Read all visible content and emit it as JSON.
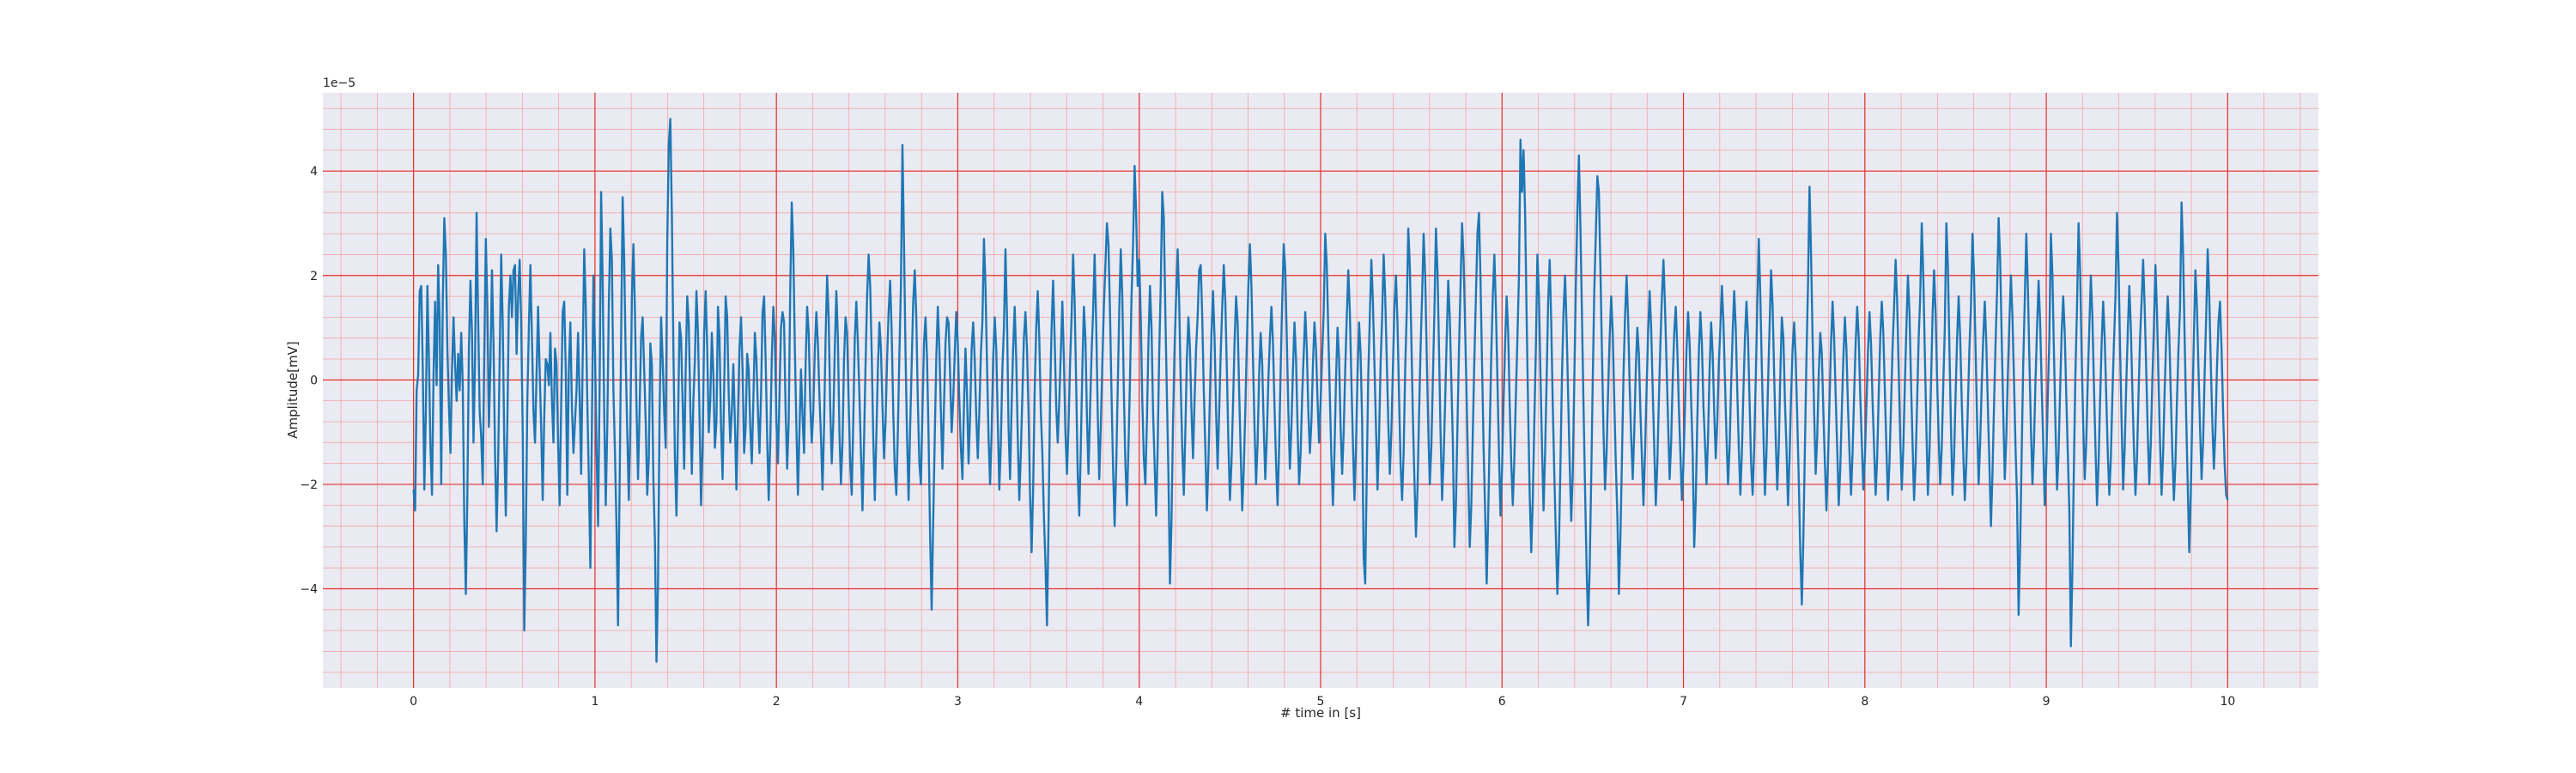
{
  "chart_data": {
    "type": "line",
    "title": "",
    "xlabel": "# time in [s]",
    "ylabel": "Amplitude[mV]",
    "y_offset_label": "1e−5",
    "xlim": [
      -0.5,
      10.5
    ],
    "ylim": [
      -5.9,
      5.5
    ],
    "xticks": [
      0,
      1,
      2,
      3,
      4,
      5,
      6,
      7,
      8,
      9,
      10
    ],
    "xtick_labels": [
      "0",
      "1",
      "2",
      "3",
      "4",
      "5",
      "6",
      "7",
      "8",
      "9",
      "10"
    ],
    "yticks": [
      -4,
      -2,
      0,
      2,
      4
    ],
    "ytick_labels": [
      "−4",
      "−2",
      "0",
      "2",
      "4"
    ],
    "grid": "major and minor, red",
    "colors": {
      "background": "#eaeaf2",
      "major_grid": "#e8302a",
      "minor_grid": "#f2a6a6",
      "line": "#1f77b4",
      "text": "#262626"
    },
    "series": [
      {
        "sample_interval_s": 0.01,
        "x_start": 0,
        "values": [
          -2.1,
          -2.5,
          -0.2,
          0.1,
          1.7,
          1.8,
          0.2,
          -2.1,
          -0.6,
          1.8,
          0.4,
          -1.3,
          -2.2,
          0.1,
          1.5,
          -0.1,
          2.2,
          1.1,
          -2.0,
          1.5,
          3.1,
          2.4,
          0.6,
          -0.5,
          -1.4,
          0.2,
          1.2,
          0.3,
          -0.4,
          0.5,
          -0.2,
          0.9,
          -0.1,
          -2.7,
          -4.1,
          -2.2,
          0.6,
          1.9,
          0.9,
          -1.2,
          0.4,
          3.2,
          1.2,
          -0.6,
          -1.1,
          -2.0,
          0.5,
          2.7,
          1.4,
          -0.9,
          0.3,
          2.1,
          0.7,
          -1.4,
          -2.9,
          -1.6,
          0.4,
          2.4,
          1.1,
          -1.2,
          -2.6,
          -0.8,
          1.4,
          2.0,
          1.2,
          2.1,
          2.2,
          0.5,
          1.6,
          2.3,
          1.1,
          -1.0,
          -4.8,
          -3.1,
          -0.4,
          1.0,
          2.2,
          0.8,
          -0.6,
          -1.2,
          0.1,
          1.4,
          0.2,
          -0.9,
          -2.3,
          -0.7,
          0.4,
          0.3,
          -0.1,
          0.9,
          -0.4,
          -1.2,
          0.6,
          0.3,
          -1.2,
          -2.4,
          -0.5,
          1.3,
          1.5,
          0.2,
          -2.2,
          0.2,
          1.1,
          -0.5,
          -1.4,
          -0.8,
          -0.2,
          0.9,
          -0.3,
          -1.8,
          0.4,
          2.5,
          1.4,
          -0.4,
          -1.9,
          -3.6,
          -0.9,
          2.0,
          0.6,
          -1.3,
          -2.8,
          -0.2,
          3.6,
          1.9,
          -0.6,
          -2.4,
          -0.9,
          1.4,
          2.9,
          2.3,
          -0.2,
          -1.4,
          -2.8,
          -4.7,
          -2.1,
          0.8,
          3.5,
          2.3,
          0.4,
          -1.0,
          -2.3,
          -0.9,
          1.6,
          2.6,
          1.3,
          -0.5,
          -1.9,
          -0.6,
          0.8,
          1.2,
          0.2,
          -0.8,
          -2.2,
          -1.5,
          0.7,
          0.3,
          -1.9,
          -3.1,
          -5.4,
          -3.9,
          -0.7,
          1.2,
          0.4,
          -0.6,
          -1.3,
          2.6,
          4.5,
          5.0,
          3.2,
          0.6,
          -1.5,
          -2.6,
          -0.9,
          1.1,
          0.8,
          -0.4,
          -1.7,
          0.2,
          1.6,
          1.1,
          -0.5,
          -1.8,
          -0.4,
          0.4,
          1.7,
          0.9,
          -0.7,
          -2.4,
          -1.3,
          0.9,
          1.7,
          0.6,
          -1.0,
          -0.4,
          0.9,
          0.1,
          -1.3,
          -0.8,
          1.4,
          0.8,
          -0.9,
          -1.9,
          -0.2,
          1.6,
          1.2,
          -0.3,
          -1.2,
          -0.6,
          0.3,
          -0.8,
          -2.1,
          -0.7,
          0.6,
          1.2,
          0.2,
          -1.4,
          -0.9,
          0.5,
          0.2,
          -0.9,
          -1.6,
          -0.4,
          0.9,
          0.4,
          -0.6,
          -1.4,
          -0.3,
          1.3,
          1.6,
          0.4,
          -1.1,
          -2.3,
          -1.2,
          0.4,
          1.4,
          0.8,
          -0.8,
          -1.6,
          -0.3,
          1.0,
          1.3,
          1.1,
          -0.6,
          -1.7,
          -0.8,
          1.7,
          3.4,
          2.5,
          0.6,
          -0.9,
          -2.2,
          -1.0,
          0.2,
          -0.7,
          -1.4,
          0.3,
          1.4,
          0.9,
          -0.4,
          -1.2,
          -0.6,
          0.6,
          1.3,
          0.7,
          -0.3,
          -1.1,
          -2.1,
          -0.9,
          0.8,
          2.0,
          1.2,
          -0.5,
          -1.6,
          -0.8,
          0.6,
          1.7,
          0.8,
          -1.0,
          -2.0,
          -1.2,
          0.4,
          1.2,
          0.9,
          -0.4,
          -1.6,
          -2.2,
          -0.8,
          0.8,
          1.5,
          0.7,
          -0.3,
          -1.4,
          -2.5,
          -1.2,
          0.3,
          1.6,
          2.4,
          1.8,
          0.5,
          -1.1,
          -2.3,
          -1.1,
          0.2,
          1.1,
          0.6,
          -0.5,
          -1.5,
          -0.8,
          0.4,
          1.3,
          1.9,
          0.9,
          -0.6,
          -1.7,
          -2.2,
          -1.0,
          0.5,
          1.8,
          4.5,
          2.6,
          0.5,
          -1.1,
          -2.3,
          -0.9,
          0.3,
          1.5,
          2.1,
          1.2,
          -0.4,
          -1.6,
          -2.0,
          -0.6,
          0.7,
          1.2,
          0.4,
          -1.1,
          -3.0,
          -4.4,
          -2.7,
          -1.1,
          0.4,
          1.4,
          0.6,
          -0.6,
          -1.7,
          -0.5,
          0.7,
          1.2,
          1.1,
          0.1,
          -1.0,
          -0.4,
          0.5,
          1.3,
          0.7,
          -0.4,
          -1.3,
          -1.9,
          -0.5,
          0.6,
          -0.3,
          -1.6,
          -0.7,
          0.6,
          1.1,
          0.4,
          -0.7,
          -1.5,
          -0.6,
          0.5,
          1.1,
          2.7,
          1.8,
          0.3,
          -1.1,
          -2.0,
          -1.0,
          0.4,
          1.2,
          0.6,
          -0.8,
          -2.1,
          -1.2,
          0.2,
          1.0,
          2.5,
          1.2,
          -0.9,
          -1.9,
          -0.5,
          0.6,
          1.4,
          0.4,
          -1.1,
          -2.3,
          -1.4,
          -0.3,
          0.8,
          1.3,
          0.6,
          -0.6,
          -2.2,
          -3.3,
          -2.1,
          -0.2,
          1.0,
          1.7,
          0.8,
          -0.6,
          -1.4,
          -2.6,
          -3.5,
          -4.7,
          -2.8,
          -0.4,
          1.0,
          1.9,
          0.8,
          -0.5,
          -1.2,
          -0.4,
          0.5,
          1.5,
          0.4,
          -1.0,
          -1.8,
          -0.9,
          0.3,
          1.2,
          2.4,
          1.5,
          -0.1,
          -1.8,
          -2.6,
          -1.3,
          0.2,
          1.4,
          0.8,
          -0.7,
          -1.8,
          -0.6,
          0.5,
          1.3,
          2.4,
          1.1,
          -0.6,
          -1.9,
          -0.9,
          0.3,
          1.4,
          2.2,
          3.0,
          2.6,
          1.3,
          -0.3,
          -1.7,
          -2.8,
          -1.7,
          -0.2,
          1.3,
          2.5,
          1.6,
          -0.2,
          -1.6,
          -2.4,
          -1.3,
          0.0,
          1.6,
          2.6,
          4.1,
          3.2,
          1.8,
          2.3,
          1.2,
          -0.4,
          -1.5,
          -2.0,
          -0.8,
          0.7,
          1.8,
          1.0,
          -0.6,
          -1.6,
          -2.6,
          -1.3,
          0.5,
          1.8,
          3.6,
          3.1,
          1.3,
          -0.3,
          -1.8,
          -3.9,
          -2.7,
          -0.8,
          0.6,
          1.6,
          2.5,
          1.5,
          -0.1,
          -1.3,
          -2.2,
          -1.0,
          0.4,
          1.2,
          0.6,
          -0.6,
          -1.5,
          -0.4,
          0.6,
          1.2,
          2.1,
          2.2,
          1.2,
          -0.2,
          -1.3,
          -2.5,
          -1.6,
          -0.3,
          0.9,
          1.7,
          0.8,
          -0.6,
          -1.7,
          -0.6,
          0.5,
          1.4,
          2.2,
          1.5,
          0.2,
          -1.2,
          -2.3,
          -1.6,
          -0.5,
          0.7,
          1.6,
          1.1,
          -0.2,
          -1.4,
          -2.5,
          -1.7,
          -0.6,
          0.7,
          1.8,
          2.6,
          1.8,
          0.4,
          -0.9,
          -2.0,
          -1.2,
          0.1,
          0.9,
          0.3,
          -0.9,
          -1.9,
          -1.1,
          0.0,
          0.8,
          1.4,
          0.7,
          -0.5,
          -1.6,
          -2.4,
          -1.3,
          0.2,
          1.5,
          2.6,
          2.1,
          0.8,
          -0.6,
          -1.7,
          -0.9,
          0.2,
          1.1,
          0.4,
          -0.9,
          -2.0,
          -1.4,
          -0.3,
          0.5,
          1.3,
          0.6,
          -0.6,
          -1.4,
          -0.8,
          0.3,
          1.1,
          0.6,
          -0.4,
          -1.2,
          -0.4,
          0.5,
          1.3,
          2.8,
          2.2,
          0.9,
          -0.3,
          -1.5,
          -2.4,
          -1.4,
          0.0,
          1.0,
          0.4,
          -0.9,
          -1.8,
          -1.0,
          0.2,
          1.2,
          2.1,
          1.3,
          0.0,
          -1.2,
          -2.3,
          -1.3,
          0.1,
          1.1,
          0.5,
          -0.8,
          -3.4,
          -3.9,
          -1.8,
          0.1,
          1.2,
          2.3,
          1.5,
          0.3,
          -0.9,
          -2.1,
          -1.1,
          0.3,
          1.2,
          2.4,
          1.6,
          0.4,
          -0.8,
          -1.8,
          -1.0,
          0.2,
          1.4,
          2.0,
          1.1,
          -0.3,
          -1.6,
          -2.3,
          -1.4,
          0.2,
          1.3,
          2.9,
          2.2,
          0.8,
          -0.7,
          -1.9,
          -3.0,
          -2.1,
          -0.7,
          0.6,
          1.6,
          2.8,
          2.0,
          0.5,
          -0.9,
          -2.0,
          -1.3,
          0.0,
          1.3,
          2.9,
          2.1,
          0.6,
          -1.0,
          -2.3,
          -1.5,
          -0.4,
          0.8,
          1.9,
          1.2,
          0.0,
          -1.2,
          -3.2,
          -2.4,
          -0.9,
          0.6,
          1.8,
          3.0,
          2.3,
          1.0,
          -0.4,
          -1.8,
          -3.2,
          -2.4,
          -1.0,
          0.4,
          1.6,
          2.8,
          3.2,
          1.9,
          0.3,
          -1.3,
          -2.5,
          -3.9,
          -2.6,
          -1.0,
          0.5,
          1.6,
          2.4,
          1.4,
          0.0,
          -1.4,
          -2.6,
          -1.7,
          -0.4,
          0.7,
          1.6,
          0.9,
          -0.5,
          -1.6,
          -2.4,
          -1.5,
          -0.3,
          0.8,
          2.0,
          4.6,
          3.6,
          4.4,
          3.2,
          1.2,
          -0.6,
          -2.2,
          -3.3,
          -2.3,
          -0.8,
          0.6,
          2.4,
          1.6,
          0.1,
          -1.3,
          -2.5,
          -1.4,
          0.0,
          1.5,
          2.3,
          1.1,
          -0.5,
          -1.8,
          -3.0,
          -4.1,
          -3.2,
          -1.6,
          0.1,
          1.3,
          2.0,
          1.0,
          -0.3,
          -1.6,
          -2.7,
          -1.8,
          0.0,
          1.8,
          3.2,
          4.3,
          2.9,
          1.2,
          -0.5,
          -2.1,
          -3.6,
          -4.7,
          -3.6,
          -1.9,
          0.0,
          1.7,
          2.8,
          3.9,
          3.6,
          2.1,
          0.5,
          -1.0,
          -2.1,
          -1.4,
          -0.2,
          0.8,
          1.6,
          0.9,
          -0.4,
          -1.6,
          -2.6,
          -4.1,
          -3.0,
          -1.5,
          0.1,
          1.2,
          2.0,
          1.2,
          -0.1,
          -1.1,
          -1.9,
          -1.0,
          0.2,
          1.0,
          0.5,
          -0.6,
          -1.5,
          -2.4,
          -1.4,
          -0.2,
          0.9,
          1.7,
          1.0,
          -0.2,
          -1.3,
          -2.4,
          -1.6,
          -0.4,
          0.7,
          1.6,
          2.3,
          1.4,
          0.3,
          -0.8,
          -1.9,
          -1.2,
          0.0,
          0.9,
          1.4,
          0.6,
          -0.5,
          -1.4,
          -2.3,
          -1.6,
          -0.5,
          0.6,
          1.3,
          0.7,
          -0.4,
          -1.4,
          -3.2,
          -2.3,
          -0.8,
          0.5,
          1.3,
          0.7,
          -0.5,
          -1.2,
          -2.0,
          -1.1,
          0.2,
          1.1,
          0.5,
          -0.6,
          -1.5,
          -0.8,
          0.3,
          1.0,
          1.8,
          1.1,
          0.0,
          -1.1,
          -2.0,
          -1.3,
          -0.1,
          0.9,
          1.7,
          1.0,
          -0.2,
          -1.3,
          -2.2,
          -1.4,
          -0.2,
          0.8,
          1.5,
          0.8,
          -0.4,
          -1.6,
          -2.2,
          -1.3,
          0.0,
          1.4,
          2.7,
          1.6,
          0.2,
          -1.0,
          -2.2,
          -1.4,
          -0.1,
          1.0,
          2.1,
          1.4,
          0.1,
          -1.1,
          -2.1,
          -1.3,
          0.1,
          1.2,
          0.8,
          -0.4,
          -1.3,
          -2.4,
          -1.5,
          -0.3,
          0.6,
          1.1,
          0.4,
          -0.7,
          -1.9,
          -3.3,
          -4.3,
          -3.0,
          -1.3,
          0.4,
          1.8,
          3.7,
          2.4,
          0.8,
          -0.6,
          -1.8,
          -1.1,
          0.1,
          0.9,
          0.5,
          -0.6,
          -1.6,
          -2.5,
          -1.6,
          -0.4,
          0.7,
          1.5,
          0.8,
          -0.3,
          -1.3,
          -2.4,
          -1.7,
          -0.6,
          0.4,
          1.2,
          0.6,
          -0.5,
          -1.4,
          -2.2,
          -1.4,
          -0.3,
          0.7,
          1.4,
          0.8,
          -0.3,
          -1.2,
          -2.1,
          -1.5,
          -0.5,
          0.5,
          1.3,
          0.7,
          -0.4,
          -1.3,
          -2.2,
          -1.5,
          -0.3,
          0.8,
          1.5,
          0.9,
          -0.2,
          -1.3,
          -2.3,
          -1.6,
          -0.5,
          0.6,
          1.4,
          2.3,
          1.5,
          0.2,
          -1.1,
          -2.1,
          -1.3,
          -0.1,
          1.0,
          2.0,
          1.3,
          0.0,
          -1.2,
          -2.3,
          -1.6,
          -0.4,
          0.8,
          1.6,
          3.0,
          2.0,
          0.5,
          -0.9,
          -2.2,
          -1.4,
          -0.1,
          1.2,
          2.1,
          1.3,
          0.0,
          -1.1,
          -2.0,
          -1.3,
          -0.1,
          1.0,
          3.0,
          2.2,
          0.6,
          -0.9,
          -2.2,
          -1.5,
          -0.3,
          0.8,
          1.6,
          0.8,
          -0.4,
          -1.4,
          -2.3,
          -1.6,
          -0.5,
          0.6,
          1.4,
          2.8,
          2.0,
          0.6,
          -0.8,
          -2.0,
          -1.2,
          -0.1,
          0.8,
          1.5,
          0.7,
          -0.5,
          -1.6,
          -2.8,
          -1.8,
          -0.5,
          0.7,
          1.7,
          3.1,
          2.3,
          0.8,
          -0.6,
          -1.9,
          -1.1,
          0.1,
          1.1,
          2.0,
          1.2,
          0.0,
          -1.3,
          -2.3,
          -4.5,
          -3.2,
          -1.4,
          0.3,
          1.5,
          2.8,
          1.8,
          0.4,
          -0.9,
          -2.0,
          -1.2,
          0.0,
          1.0,
          1.9,
          1.1,
          -0.1,
          -1.2,
          -2.4,
          -1.6,
          -0.3,
          0.8,
          2.8,
          2.0,
          0.5,
          -0.9,
          -2.1,
          -1.4,
          -0.2,
          0.9,
          1.6,
          0.9,
          -0.3,
          -1.4,
          -2.5,
          -5.1,
          -3.6,
          -1.6,
          0.2,
          1.4,
          3.0,
          2.1,
          0.5,
          -0.8,
          -1.9,
          -1.2,
          0.0,
          1.0,
          2.0,
          1.2,
          -0.1,
          -1.3,
          -2.4,
          -1.6,
          -0.4,
          0.7,
          1.5,
          0.8,
          -0.3,
          -1.4,
          -2.2,
          -1.5,
          -0.3,
          0.7,
          1.6,
          3.2,
          2.2,
          0.6,
          -0.8,
          -2.1,
          -1.3,
          -0.1,
          0.9,
          1.8,
          1.0,
          -0.2,
          -1.3,
          -2.2,
          -1.5,
          -0.3,
          0.8,
          1.5,
          2.3,
          1.4,
          0.2,
          -1.0,
          -2.0,
          -1.2,
          0.0,
          1.0,
          2.2,
          1.3,
          0.0,
          -1.2,
          -2.2,
          -1.4,
          -0.2,
          0.8,
          1.6,
          0.9,
          -0.3,
          -1.4,
          -2.3,
          -1.6,
          -0.4,
          0.6,
          1.4,
          3.4,
          2.4,
          0.8,
          -0.7,
          -2.0,
          -3.3,
          -2.2,
          -0.6,
          0.8,
          2.1,
          1.4,
          0.2,
          -0.9,
          -1.9,
          -1.2,
          0.1,
          1.2,
          2.5,
          1.6,
          0.3,
          -0.8,
          -1.7,
          -1.0,
          0.2,
          1.1,
          1.5,
          0.6,
          -0.6,
          -1.6,
          -2.2,
          -2.3
        ]
      }
    ]
  }
}
